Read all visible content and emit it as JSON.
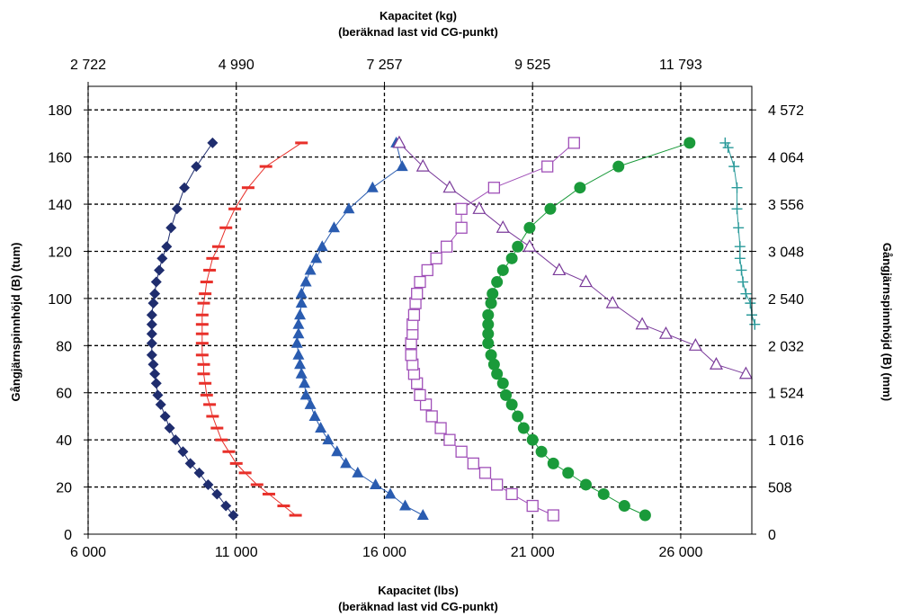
{
  "chart_data": {
    "type": "scatter",
    "x_bottom": {
      "label_line1": "Kapacitet (lbs)",
      "label_line2": "(beräknad last vid CG-punkt)",
      "range": [
        6000,
        28400
      ],
      "ticks": [
        6000,
        11000,
        16000,
        21000,
        26000
      ],
      "tick_labels": [
        "6 000",
        "11 000",
        "16 000",
        "21 000",
        "26 000"
      ]
    },
    "x_top": {
      "label_line1": "Kapacitet (kg)",
      "label_line2": "(beräknad last vid CG-punkt)",
      "tick_labels": [
        "2 722",
        "4 990",
        "7 257",
        "9 525",
        "11 793"
      ]
    },
    "y_left": {
      "label": "Gångjärnspinnhöjd (B) (tum)",
      "range": [
        0,
        190
      ],
      "ticks": [
        0,
        20,
        40,
        60,
        80,
        100,
        120,
        140,
        160,
        180
      ],
      "tick_labels": [
        "0",
        "20",
        "40",
        "60",
        "80",
        "100",
        "120",
        "140",
        "160",
        "180"
      ]
    },
    "y_right": {
      "label": "Gångjärnspinnhöjd (B) (mm)",
      "tick_labels": [
        "0",
        "508",
        "1 016",
        "1 524",
        "2 032",
        "2 540",
        "3 048",
        "3 556",
        "4 064",
        "4 572"
      ]
    },
    "grid": "dashed",
    "series": [
      {
        "marker": "diamond",
        "color": "#1f2d6e",
        "points": [
          [
            10900,
            8
          ],
          [
            10650,
            12
          ],
          [
            10350,
            17
          ],
          [
            10050,
            21
          ],
          [
            9750,
            26
          ],
          [
            9450,
            30
          ],
          [
            9200,
            35
          ],
          [
            8950,
            40
          ],
          [
            8750,
            45
          ],
          [
            8600,
            50
          ],
          [
            8450,
            55
          ],
          [
            8350,
            59
          ],
          [
            8300,
            64
          ],
          [
            8250,
            68
          ],
          [
            8200,
            72
          ],
          [
            8150,
            76
          ],
          [
            8150,
            81
          ],
          [
            8150,
            85
          ],
          [
            8150,
            89
          ],
          [
            8150,
            93
          ],
          [
            8200,
            98
          ],
          [
            8250,
            102
          ],
          [
            8300,
            107
          ],
          [
            8400,
            112
          ],
          [
            8500,
            117
          ],
          [
            8650,
            122
          ],
          [
            8800,
            130
          ],
          [
            9000,
            138
          ],
          [
            9250,
            147
          ],
          [
            9650,
            156
          ],
          [
            10200,
            166
          ]
        ]
      },
      {
        "marker": "dash",
        "color": "#e8302a",
        "points": [
          [
            13000,
            8
          ],
          [
            12600,
            12
          ],
          [
            12100,
            17
          ],
          [
            11700,
            21
          ],
          [
            11300,
            26
          ],
          [
            11000,
            30
          ],
          [
            10750,
            35
          ],
          [
            10500,
            40
          ],
          [
            10350,
            45
          ],
          [
            10200,
            50
          ],
          [
            10100,
            55
          ],
          [
            10000,
            59
          ],
          [
            9950,
            64
          ],
          [
            9900,
            68
          ],
          [
            9900,
            72
          ],
          [
            9850,
            76
          ],
          [
            9850,
            81
          ],
          [
            9850,
            85
          ],
          [
            9850,
            89
          ],
          [
            9850,
            93
          ],
          [
            9900,
            98
          ],
          [
            9950,
            102
          ],
          [
            10000,
            107
          ],
          [
            10100,
            112
          ],
          [
            10200,
            117
          ],
          [
            10400,
            122
          ],
          [
            10650,
            130
          ],
          [
            10950,
            138
          ],
          [
            11400,
            147
          ],
          [
            12000,
            156
          ],
          [
            13200,
            166
          ]
        ]
      },
      {
        "marker": "triangle",
        "color": "#2a5cb0",
        "points": [
          [
            17300,
            8
          ],
          [
            16700,
            12
          ],
          [
            16200,
            17
          ],
          [
            15700,
            21
          ],
          [
            15100,
            26
          ],
          [
            14700,
            30
          ],
          [
            14400,
            35
          ],
          [
            14100,
            40
          ],
          [
            13850,
            45
          ],
          [
            13650,
            50
          ],
          [
            13500,
            55
          ],
          [
            13350,
            59
          ],
          [
            13300,
            64
          ],
          [
            13200,
            68
          ],
          [
            13150,
            72
          ],
          [
            13100,
            76
          ],
          [
            13050,
            81
          ],
          [
            13100,
            85
          ],
          [
            13100,
            89
          ],
          [
            13150,
            93
          ],
          [
            13200,
            98
          ],
          [
            13200,
            102
          ],
          [
            13350,
            107
          ],
          [
            13500,
            112
          ],
          [
            13700,
            117
          ],
          [
            13900,
            122
          ],
          [
            14300,
            130
          ],
          [
            14800,
            138
          ],
          [
            15600,
            147
          ],
          [
            16600,
            156
          ],
          [
            16400,
            166
          ]
        ]
      },
      {
        "marker": "open-square",
        "color": "#a050b8",
        "points": [
          [
            21700,
            8
          ],
          [
            21000,
            12
          ],
          [
            20300,
            17
          ],
          [
            19800,
            21
          ],
          [
            19400,
            26
          ],
          [
            19000,
            30
          ],
          [
            18600,
            35
          ],
          [
            18200,
            40
          ],
          [
            17900,
            45
          ],
          [
            17600,
            50
          ],
          [
            17400,
            55
          ],
          [
            17200,
            59
          ],
          [
            17100,
            64
          ],
          [
            17000,
            68
          ],
          [
            16950,
            72
          ],
          [
            16900,
            76
          ],
          [
            16900,
            81
          ],
          [
            16950,
            85
          ],
          [
            16950,
            89
          ],
          [
            17000,
            93
          ],
          [
            17050,
            98
          ],
          [
            17100,
            102
          ],
          [
            17200,
            107
          ],
          [
            17450,
            112
          ],
          [
            17750,
            117
          ],
          [
            18100,
            122
          ],
          [
            18600,
            130
          ],
          [
            18600,
            138
          ],
          [
            19700,
            147
          ],
          [
            21500,
            156
          ],
          [
            22400,
            166
          ]
        ]
      },
      {
        "marker": "open-triangle",
        "color": "#7a3a9a",
        "points": [
          [
            16500,
            166
          ],
          [
            17300,
            156
          ],
          [
            18200,
            147
          ],
          [
            19200,
            138
          ],
          [
            20000,
            130
          ],
          [
            20900,
            122
          ],
          [
            21900,
            112
          ],
          [
            22800,
            107
          ],
          [
            23700,
            98
          ],
          [
            24700,
            89
          ],
          [
            25500,
            85
          ],
          [
            26500,
            80
          ],
          [
            27200,
            72
          ],
          [
            28200,
            68
          ]
        ]
      },
      {
        "marker": "circle",
        "color": "#1a9a3a",
        "points": [
          [
            24800,
            8
          ],
          [
            24100,
            12
          ],
          [
            23400,
            17
          ],
          [
            22800,
            21
          ],
          [
            22200,
            26
          ],
          [
            21700,
            30
          ],
          [
            21300,
            35
          ],
          [
            21000,
            40
          ],
          [
            20700,
            45
          ],
          [
            20500,
            50
          ],
          [
            20300,
            55
          ],
          [
            20100,
            59
          ],
          [
            20000,
            64
          ],
          [
            19800,
            68
          ],
          [
            19700,
            72
          ],
          [
            19600,
            76
          ],
          [
            19500,
            81
          ],
          [
            19500,
            85
          ],
          [
            19500,
            89
          ],
          [
            19500,
            93
          ],
          [
            19600,
            98
          ],
          [
            19650,
            102
          ],
          [
            19800,
            107
          ],
          [
            20000,
            112
          ],
          [
            20300,
            117
          ],
          [
            20500,
            122
          ],
          [
            20900,
            130
          ],
          [
            21600,
            138
          ],
          [
            22600,
            147
          ],
          [
            23900,
            156
          ],
          [
            26300,
            166
          ]
        ]
      },
      {
        "marker": "plus",
        "color": "#2a9a9a",
        "points": [
          [
            27500,
            166
          ],
          [
            27600,
            164
          ],
          [
            27800,
            156
          ],
          [
            27900,
            147
          ],
          [
            27900,
            138
          ],
          [
            27950,
            130
          ],
          [
            28000,
            122
          ],
          [
            28000,
            117
          ],
          [
            28050,
            112
          ],
          [
            28100,
            107
          ],
          [
            28200,
            102
          ],
          [
            28350,
            98
          ],
          [
            28400,
            93
          ],
          [
            28500,
            89
          ]
        ]
      }
    ]
  }
}
